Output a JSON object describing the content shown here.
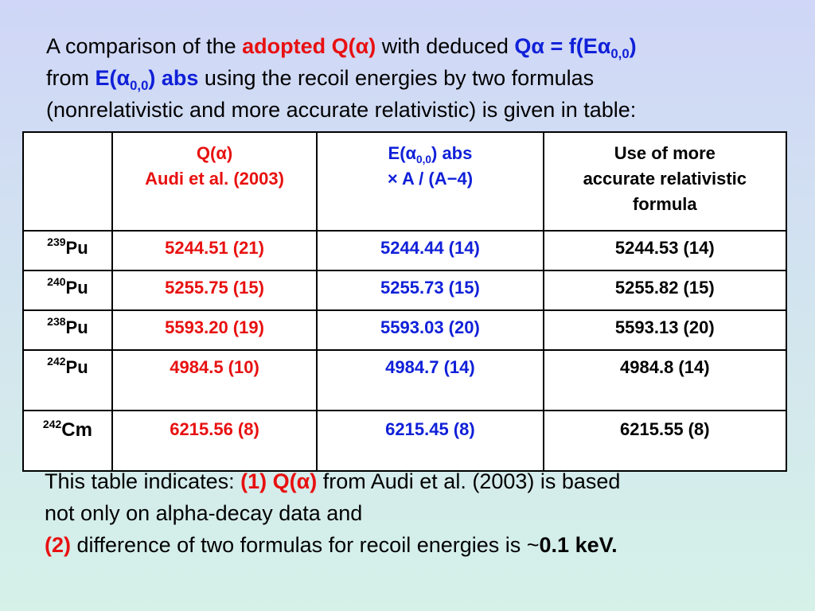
{
  "intro": {
    "l1_a": "A comparison of the ",
    "l1_b": "adopted Q(",
    "alpha": "α",
    "l1_c": ")",
    "l1_d": " with deduced ",
    "l1_e": "Q",
    "l1_f": " = f(E",
    "sub00": "0,0",
    "l1_g": ")",
    "l2_a": "from ",
    "l2_b": "E(",
    "l2_c": ") abs",
    "l2_d": " using the recoil energies by two formulas",
    "l3": "(nonrelativistic and more accurate relativistic) is given in table:"
  },
  "table": {
    "headers": {
      "h1_line1": "Q(α)",
      "h1_line2": "Audi et al. (2003)",
      "h2_pre": "E(α",
      "h2_sub": "0,0",
      "h2_post": ") abs",
      "h2_line2": "× A / (A−4)",
      "h3_line1": "Use of more",
      "h3_line2": "accurate relativistic",
      "h3_line3": "formula"
    },
    "rows": [
      {
        "mass": "239",
        "element": "Pu",
        "q": "5244.51 (21)",
        "e": "5244.44 (14)",
        "rel": "5244.53 (14)"
      },
      {
        "mass": "240",
        "element": "Pu",
        "q": "5255.75 (15)",
        "e": "5255.73 (15)",
        "rel": "5255.82 (15)"
      },
      {
        "mass": "238",
        "element": "Pu",
        "q": "5593.20 (19)",
        "e": "5593.03 (20)",
        "rel": "5593.13 (20)"
      },
      {
        "mass": "242",
        "element": "Pu",
        "q": "4984.5 (10)",
        "e": "4984.7 (14)",
        "rel": "4984.8 (14)"
      },
      {
        "mass": "242",
        "element": "Cm",
        "q": "6215.56 (8)",
        "e": "6215.45 (8)",
        "rel": "6215.55 (8)"
      }
    ]
  },
  "outro": {
    "l1_a": "This table indicates:  ",
    "l1_b": "(1) ",
    "l1_c": "Q(",
    "alpha": "α",
    "l1_d": ")",
    "l1_e": " from Audi et al. (2003) is based",
    "l2": "not only on alpha-decay data and",
    "l3_a": "(2)",
    "l3_b": " difference of two formulas for recoil energies is ~",
    "l3_c": "0.1 keV."
  },
  "colors": {
    "red": "#e81010",
    "blue": "#1020d8"
  }
}
